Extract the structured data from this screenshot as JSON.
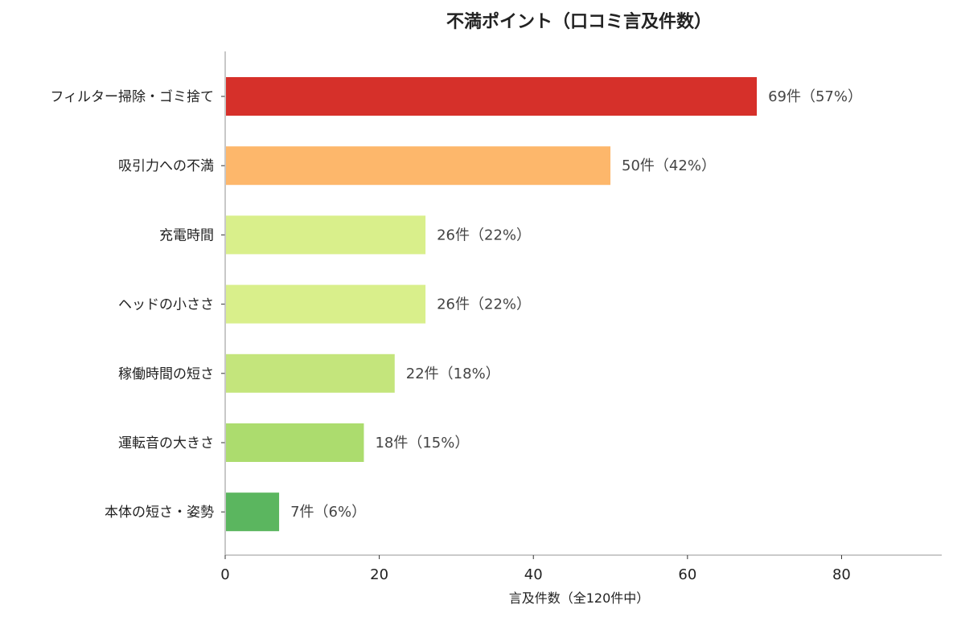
{
  "chart_data": {
    "type": "bar",
    "orientation": "horizontal",
    "title": "不満ポイント（口コミ言及件数）",
    "xlabel": "言及件数（全120件中）",
    "ylabel": "",
    "xlim": [
      0,
      93
    ],
    "xticks": [
      0,
      20,
      40,
      60,
      80
    ],
    "xtick_labels": [
      "0",
      "20",
      "40",
      "60",
      "80"
    ],
    "grid": false,
    "categories": [
      "フィルター掃除・ゴミ捨て",
      "吸引力への不満",
      "充電時間",
      "ヘッドの小ささ",
      "稼働時間の短さ",
      "運転音の大きさ",
      "本体の短さ・姿勢"
    ],
    "values": [
      69,
      50,
      26,
      26,
      22,
      18,
      7
    ],
    "value_labels": [
      "69件（57%）",
      "50件（42%）",
      "26件（22%）",
      "26件（22%）",
      "22件（18%）",
      "18件（15%）",
      "7件（6%）"
    ],
    "colors": [
      "#d6302a",
      "#fdb76b",
      "#d9ef8b",
      "#d9ef8b",
      "#c4e57c",
      "#acdc6e",
      "#5bb65f"
    ]
  }
}
